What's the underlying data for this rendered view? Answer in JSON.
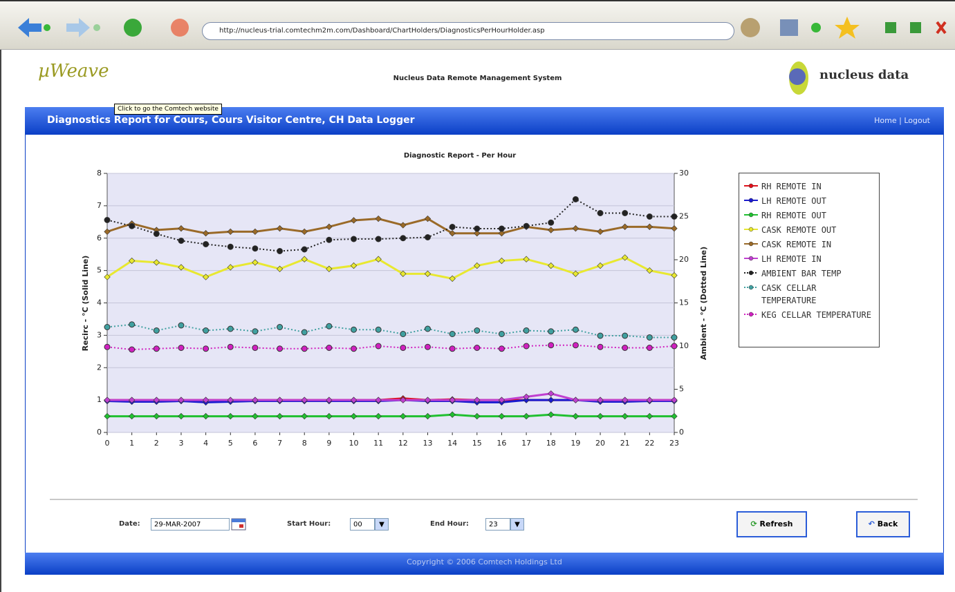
{
  "browser": {
    "url": "http://nucleus-trial.comtechm2m.com/Dashboard/ChartHolders/DiagnosticsPerHourHolder.asp"
  },
  "header": {
    "brand": "µWeave",
    "system_title": "Nucleus Data Remote Management System",
    "company": "nucleus data",
    "tooltip": "Click to go the Comtech website"
  },
  "title_bar": {
    "title": "Diagnostics Report for Cours, Cours Visitor Centre, CH Data Logger",
    "home": "Home",
    "separator": "|",
    "logout": "Logout"
  },
  "chart_data": {
    "type": "line",
    "title": "Diagnostic Report - Per Hour",
    "ylabel": "Recirc - °C (Solid Line)",
    "y2label": "Ambient - °C (Dotted Line)",
    "x": [
      0,
      1,
      2,
      3,
      4,
      5,
      6,
      7,
      8,
      9,
      10,
      11,
      12,
      13,
      14,
      15,
      16,
      17,
      18,
      19,
      20,
      21,
      22,
      23
    ],
    "xlim": [
      0,
      23
    ],
    "xticks": [
      0,
      1,
      2,
      3,
      4,
      5,
      6,
      7,
      8,
      9,
      10,
      11,
      12,
      13,
      14,
      15,
      16,
      17,
      18,
      19,
      20,
      21,
      22,
      23
    ],
    "ylim": [
      0,
      8
    ],
    "yticks": [
      0,
      1,
      2,
      3,
      4,
      5,
      6,
      7,
      8
    ],
    "y2lim": [
      0,
      30
    ],
    "y2ticks": [
      0,
      5,
      10,
      15,
      20,
      25,
      30
    ],
    "grid": true,
    "legend": "right",
    "series": [
      {
        "name": "RH REMOTE IN",
        "color": "#e0101a",
        "style": "solid",
        "values": [
          1,
          1,
          1,
          1,
          1,
          1,
          1,
          1,
          1,
          1,
          1,
          1,
          1.05,
          1,
          1.02,
          1,
          1,
          1,
          1,
          1,
          1,
          1,
          1,
          1
        ]
      },
      {
        "name": "LH REMOTE OUT",
        "color": "#1a1ad0",
        "style": "solid",
        "values": [
          0.97,
          0.95,
          0.95,
          0.97,
          0.93,
          0.95,
          0.97,
          0.97,
          0.97,
          0.97,
          0.97,
          0.97,
          1,
          0.97,
          0.97,
          0.93,
          0.93,
          1,
          1,
          1,
          0.95,
          0.95,
          0.97,
          0.97
        ]
      },
      {
        "name": "RH REMOTE OUT",
        "color": "#20c030",
        "style": "solid",
        "values": [
          0.5,
          0.5,
          0.5,
          0.5,
          0.5,
          0.5,
          0.5,
          0.5,
          0.5,
          0.5,
          0.5,
          0.5,
          0.5,
          0.5,
          0.55,
          0.5,
          0.5,
          0.5,
          0.55,
          0.5,
          0.5,
          0.5,
          0.5,
          0.5
        ]
      },
      {
        "name": "CASK REMOTE OUT",
        "color": "#e8e830",
        "style": "solid",
        "values": [
          4.8,
          5.3,
          5.25,
          5.1,
          4.8,
          5.1,
          5.25,
          5.05,
          5.35,
          5.05,
          5.15,
          5.35,
          4.9,
          4.9,
          4.75,
          5.15,
          5.3,
          5.35,
          5.15,
          4.9,
          5.15,
          5.4,
          5,
          4.85
        ]
      },
      {
        "name": "CASK REMOTE IN",
        "color": "#9a6a28",
        "style": "solid",
        "values": [
          6.2,
          6.45,
          6.25,
          6.3,
          6.15,
          6.2,
          6.2,
          6.3,
          6.2,
          6.35,
          6.55,
          6.6,
          6.4,
          6.6,
          6.15,
          6.15,
          6.15,
          6.35,
          6.25,
          6.3,
          6.2,
          6.35,
          6.35,
          6.3
        ]
      },
      {
        "name": "LH REMOTE IN",
        "color": "#c040d0",
        "style": "solid",
        "values": [
          1,
          1,
          1,
          1,
          1,
          1,
          1,
          1,
          1,
          1,
          1,
          1,
          1,
          1,
          1,
          1,
          1,
          1.1,
          1.2,
          1,
          1,
          1,
          1,
          1
        ]
      },
      {
        "name": "AMBIENT BAR TEMP",
        "color": "#222222",
        "style": "dotted",
        "axis": "y2",
        "values": [
          24.6,
          23.9,
          23,
          22.2,
          21.8,
          21.5,
          21.3,
          21,
          21.2,
          22.3,
          22.4,
          22.4,
          22.5,
          22.6,
          23.8,
          23.6,
          23.6,
          23.9,
          24.3,
          27,
          25.4,
          25.4,
          25,
          25
        ]
      },
      {
        "name": "CASK CELLAR TEMPERATURE",
        "color": "#40a0a0",
        "style": "dotted",
        "axis": "y2",
        "values": [
          12.2,
          12.5,
          11.8,
          12.4,
          11.8,
          12,
          11.7,
          12.2,
          11.6,
          12.3,
          11.9,
          11.9,
          11.4,
          12,
          11.4,
          11.8,
          11.4,
          11.8,
          11.7,
          11.9,
          11.2,
          11.2,
          11,
          11
        ]
      },
      {
        "name": "KEG CELLAR TEMPERATURE",
        "color": "#d020c0",
        "style": "dotted",
        "axis": "y2",
        "values": [
          9.9,
          9.6,
          9.7,
          9.8,
          9.7,
          9.9,
          9.8,
          9.7,
          9.7,
          9.8,
          9.7,
          10,
          9.8,
          9.9,
          9.7,
          9.8,
          9.7,
          10,
          10.1,
          10.1,
          9.9,
          9.8,
          9.8,
          10
        ]
      }
    ]
  },
  "form": {
    "date_label": "Date:",
    "date_value": "29-MAR-2007",
    "start_label": "Start Hour:",
    "start_value": "00",
    "end_label": "End Hour:",
    "end_value": "23",
    "refresh": "Refresh",
    "back": "Back"
  },
  "footer": {
    "copyright": "Copyright © 2006 Comtech Holdings Ltd"
  }
}
